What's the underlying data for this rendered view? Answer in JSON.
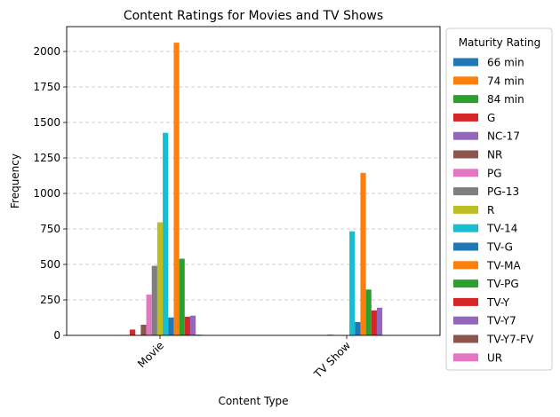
{
  "chart_data": {
    "type": "bar",
    "title": "Content Ratings for Movies and TV Shows",
    "xlabel": "Content Type",
    "ylabel": "Frequency",
    "categories": [
      "Movie",
      "TV Show"
    ],
    "ylim": [
      0,
      2175
    ],
    "yticks": [
      0,
      250,
      500,
      750,
      1000,
      1250,
      1500,
      1750,
      2000
    ],
    "grid": "y-dashed",
    "legend": {
      "title": "Maturity Rating",
      "placement": "outside-right"
    },
    "series": [
      {
        "name": "66 min",
        "color": "#1f77b4",
        "values": [
          1,
          0
        ]
      },
      {
        "name": "74 min",
        "color": "#ff7f0e",
        "values": [
          1,
          0
        ]
      },
      {
        "name": "84 min",
        "color": "#2ca02c",
        "values": [
          1,
          0
        ]
      },
      {
        "name": "G",
        "color": "#d62728",
        "values": [
          41,
          0
        ]
      },
      {
        "name": "NC-17",
        "color": "#9467bd",
        "values": [
          3,
          0
        ]
      },
      {
        "name": "NR",
        "color": "#8c564b",
        "values": [
          75,
          5
        ]
      },
      {
        "name": "PG",
        "color": "#e377c2",
        "values": [
          287,
          0
        ]
      },
      {
        "name": "PG-13",
        "color": "#7f7f7f",
        "values": [
          490,
          0
        ]
      },
      {
        "name": "R",
        "color": "#bcbd22",
        "values": [
          797,
          2
        ]
      },
      {
        "name": "TV-14",
        "color": "#17becf",
        "values": [
          1427,
          733
        ]
      },
      {
        "name": "TV-G",
        "color": "#1f77b4",
        "values": [
          126,
          94
        ]
      },
      {
        "name": "TV-MA",
        "color": "#ff7f0e",
        "values": [
          2062,
          1145
        ]
      },
      {
        "name": "TV-PG",
        "color": "#2ca02c",
        "values": [
          540,
          323
        ]
      },
      {
        "name": "TV-Y",
        "color": "#d62728",
        "values": [
          131,
          176
        ]
      },
      {
        "name": "TV-Y7",
        "color": "#9467bd",
        "values": [
          139,
          195
        ]
      },
      {
        "name": "TV-Y7-FV",
        "color": "#8c564b",
        "values": [
          5,
          1
        ]
      },
      {
        "name": "UR",
        "color": "#e377c2",
        "values": [
          3,
          0
        ]
      }
    ]
  }
}
